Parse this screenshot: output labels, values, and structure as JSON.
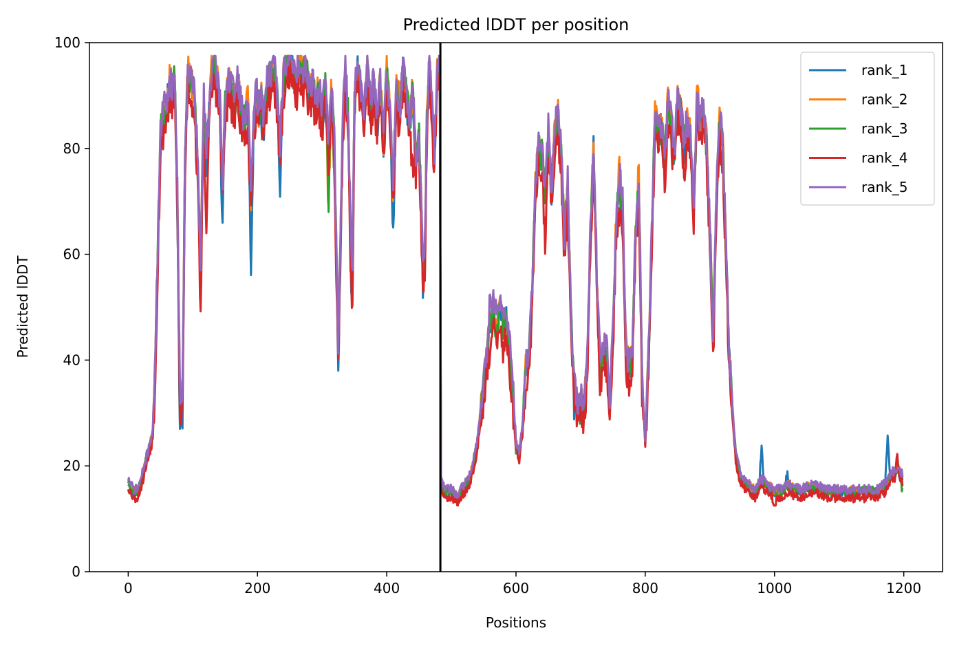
{
  "chart_data": {
    "type": "line",
    "title": "Predicted lDDT per position",
    "xlabel": "Positions",
    "ylabel": "Predicted lDDT",
    "xlim": [
      -60,
      1260
    ],
    "ylim": [
      0,
      100
    ],
    "xticks": [
      0,
      200,
      400,
      600,
      800,
      1000,
      1200
    ],
    "yticks": [
      0,
      20,
      40,
      60,
      80,
      100
    ],
    "grid": false,
    "legend_position": "top-right",
    "vline": 483,
    "series": [
      {
        "name": "rank_1",
        "color": "#1f77b4",
        "offset": 0.0,
        "seed": 11,
        "extra": [
          [
            79,
            -5
          ],
          [
            84,
            -5
          ],
          [
            112,
            -4
          ],
          [
            145,
            -8
          ],
          [
            190,
            -12
          ],
          [
            208,
            -5
          ],
          [
            235,
            -8
          ],
          [
            318,
            -6
          ],
          [
            326,
            -4
          ],
          [
            345,
            -8
          ],
          [
            410,
            -10
          ],
          [
            458,
            -4
          ],
          [
            690,
            -3
          ],
          [
            980,
            6
          ],
          [
            1020,
            3
          ],
          [
            1175,
            8
          ]
        ]
      },
      {
        "name": "rank_2",
        "color": "#ff7f0e",
        "offset": 1.0,
        "seed": 23,
        "extra": [
          [
            310,
            -14
          ],
          [
            318,
            -6
          ],
          [
            420,
            4
          ],
          [
            640,
            3
          ],
          [
            660,
            2
          ],
          [
            760,
            6
          ],
          [
            770,
            3
          ],
          [
            790,
            5
          ],
          [
            880,
            2
          ]
        ]
      },
      {
        "name": "rank_3",
        "color": "#2ca02c",
        "offset": 0.5,
        "seed": 37,
        "extra": [
          [
            310,
            -10
          ],
          [
            430,
            2
          ],
          [
            470,
            2
          ],
          [
            600,
            -2
          ],
          [
            700,
            -3
          ],
          [
            720,
            -2
          ],
          [
            800,
            -2
          ],
          [
            900,
            2
          ],
          [
            1198,
            -3
          ]
        ]
      },
      {
        "name": "rank_4",
        "color": "#d62728",
        "offset": -2.5,
        "seed": 53,
        "extra": [
          [
            112,
            -4
          ],
          [
            120,
            -12
          ],
          [
            345,
            -5
          ],
          [
            440,
            -12
          ],
          [
            560,
            -3
          ],
          [
            580,
            -4
          ],
          [
            645,
            -6
          ],
          [
            690,
            3
          ],
          [
            760,
            -3
          ],
          [
            860,
            -4
          ],
          [
            1000,
            -2
          ],
          [
            1190,
            4
          ]
        ]
      },
      {
        "name": "rank_5",
        "color": "#9467bd",
        "offset": 1.5,
        "seed": 71,
        "extra": [
          [
            560,
            4
          ],
          [
            570,
            5
          ],
          [
            590,
            5
          ],
          [
            650,
            2
          ],
          [
            730,
            4
          ],
          [
            740,
            5
          ],
          [
            760,
            2
          ],
          [
            850,
            2
          ]
        ]
      }
    ],
    "base_profile": [
      [
        0,
        17
      ],
      [
        8,
        15
      ],
      [
        14,
        15
      ],
      [
        20,
        17
      ],
      [
        26,
        20
      ],
      [
        30,
        22
      ],
      [
        34,
        24
      ],
      [
        38,
        26
      ],
      [
        42,
        40
      ],
      [
        46,
        62
      ],
      [
        50,
        82
      ],
      [
        55,
        86
      ],
      [
        60,
        88
      ],
      [
        64,
        92
      ],
      [
        68,
        90
      ],
      [
        72,
        93
      ],
      [
        76,
        70
      ],
      [
        80,
        32
      ],
      [
        84,
        33
      ],
      [
        88,
        78
      ],
      [
        92,
        94
      ],
      [
        97,
        92
      ],
      [
        102,
        90
      ],
      [
        107,
        78
      ],
      [
        112,
        56
      ],
      [
        117,
        88
      ],
      [
        121,
        78
      ],
      [
        125,
        86
      ],
      [
        129,
        94
      ],
      [
        134,
        95
      ],
      [
        138,
        92
      ],
      [
        142,
        88
      ],
      [
        146,
        72
      ],
      [
        150,
        88
      ],
      [
        155,
        92
      ],
      [
        160,
        90
      ],
      [
        165,
        88
      ],
      [
        170,
        92
      ],
      [
        175,
        86
      ],
      [
        180,
        84
      ],
      [
        185,
        88
      ],
      [
        190,
        70
      ],
      [
        194,
        84
      ],
      [
        198,
        90
      ],
      [
        202,
        86
      ],
      [
        206,
        90
      ],
      [
        210,
        84
      ],
      [
        215,
        92
      ],
      [
        220,
        93
      ],
      [
        225,
        95
      ],
      [
        230,
        90
      ],
      [
        235,
        80
      ],
      [
        240,
        92
      ],
      [
        245,
        96
      ],
      [
        250,
        97
      ],
      [
        255,
        94
      ],
      [
        260,
        92
      ],
      [
        265,
        96
      ],
      [
        270,
        93
      ],
      [
        275,
        95
      ],
      [
        280,
        90
      ],
      [
        285,
        92
      ],
      [
        290,
        88
      ],
      [
        295,
        90
      ],
      [
        300,
        86
      ],
      [
        305,
        91
      ],
      [
        310,
        80
      ],
      [
        315,
        92
      ],
      [
        319,
        80
      ],
      [
        322,
        60
      ],
      [
        325,
        42
      ],
      [
        328,
        60
      ],
      [
        332,
        84
      ],
      [
        336,
        94
      ],
      [
        340,
        86
      ],
      [
        344,
        66
      ],
      [
        347,
        55
      ],
      [
        350,
        88
      ],
      [
        355,
        95
      ],
      [
        360,
        90
      ],
      [
        365,
        84
      ],
      [
        370,
        96
      ],
      [
        375,
        86
      ],
      [
        380,
        92
      ],
      [
        385,
        84
      ],
      [
        390,
        92
      ],
      [
        395,
        80
      ],
      [
        400,
        95
      ],
      [
        405,
        85
      ],
      [
        410,
        72
      ],
      [
        415,
        92
      ],
      [
        420,
        85
      ],
      [
        425,
        94
      ],
      [
        430,
        90
      ],
      [
        435,
        84
      ],
      [
        440,
        90
      ],
      [
        445,
        78
      ],
      [
        450,
        82
      ],
      [
        453,
        70
      ],
      [
        456,
        55
      ],
      [
        459,
        60
      ],
      [
        462,
        84
      ],
      [
        466,
        96
      ],
      [
        470,
        86
      ],
      [
        474,
        78
      ],
      [
        478,
        93
      ],
      [
        482,
        95
      ],
      [
        484,
        17
      ],
      [
        490,
        15
      ],
      [
        500,
        15
      ],
      [
        510,
        14
      ],
      [
        520,
        16
      ],
      [
        530,
        18
      ],
      [
        540,
        24
      ],
      [
        548,
        33
      ],
      [
        555,
        40
      ],
      [
        560,
        47
      ],
      [
        565,
        50
      ],
      [
        570,
        44
      ],
      [
        575,
        50
      ],
      [
        580,
        46
      ],
      [
        585,
        48
      ],
      [
        590,
        40
      ],
      [
        595,
        34
      ],
      [
        600,
        24
      ],
      [
        605,
        22
      ],
      [
        610,
        27
      ],
      [
        615,
        38
      ],
      [
        620,
        40
      ],
      [
        625,
        52
      ],
      [
        630,
        72
      ],
      [
        635,
        80
      ],
      [
        640,
        78
      ],
      [
        645,
        70
      ],
      [
        650,
        80
      ],
      [
        655,
        72
      ],
      [
        660,
        82
      ],
      [
        665,
        85
      ],
      [
        670,
        78
      ],
      [
        675,
        62
      ],
      [
        680,
        72
      ],
      [
        685,
        48
      ],
      [
        690,
        34
      ],
      [
        695,
        30
      ],
      [
        700,
        32
      ],
      [
        705,
        30
      ],
      [
        710,
        38
      ],
      [
        715,
        62
      ],
      [
        720,
        80
      ],
      [
        725,
        56
      ],
      [
        730,
        36
      ],
      [
        735,
        42
      ],
      [
        740,
        40
      ],
      [
        745,
        32
      ],
      [
        750,
        44
      ],
      [
        755,
        66
      ],
      [
        760,
        72
      ],
      [
        765,
        68
      ],
      [
        770,
        40
      ],
      [
        775,
        38
      ],
      [
        780,
        40
      ],
      [
        785,
        64
      ],
      [
        790,
        72
      ],
      [
        795,
        36
      ],
      [
        800,
        25
      ],
      [
        805,
        40
      ],
      [
        810,
        62
      ],
      [
        815,
        86
      ],
      [
        820,
        82
      ],
      [
        825,
        84
      ],
      [
        830,
        76
      ],
      [
        835,
        88
      ],
      [
        840,
        84
      ],
      [
        845,
        78
      ],
      [
        850,
        88
      ],
      [
        855,
        86
      ],
      [
        860,
        80
      ],
      [
        865,
        84
      ],
      [
        870,
        82
      ],
      [
        875,
        68
      ],
      [
        880,
        88
      ],
      [
        885,
        84
      ],
      [
        890,
        86
      ],
      [
        895,
        80
      ],
      [
        900,
        64
      ],
      [
        905,
        42
      ],
      [
        910,
        70
      ],
      [
        915,
        84
      ],
      [
        920,
        80
      ],
      [
        925,
        60
      ],
      [
        930,
        40
      ],
      [
        935,
        30
      ],
      [
        940,
        22
      ],
      [
        945,
        19
      ],
      [
        950,
        17
      ],
      [
        960,
        16
      ],
      [
        970,
        15
      ],
      [
        980,
        17
      ],
      [
        990,
        16
      ],
      [
        1000,
        15
      ],
      [
        1010,
        15
      ],
      [
        1020,
        16
      ],
      [
        1040,
        15
      ],
      [
        1060,
        16
      ],
      [
        1080,
        15
      ],
      [
        1100,
        15
      ],
      [
        1120,
        15
      ],
      [
        1140,
        15
      ],
      [
        1160,
        15
      ],
      [
        1170,
        16
      ],
      [
        1180,
        18
      ],
      [
        1190,
        19
      ],
      [
        1198,
        18
      ]
    ]
  }
}
